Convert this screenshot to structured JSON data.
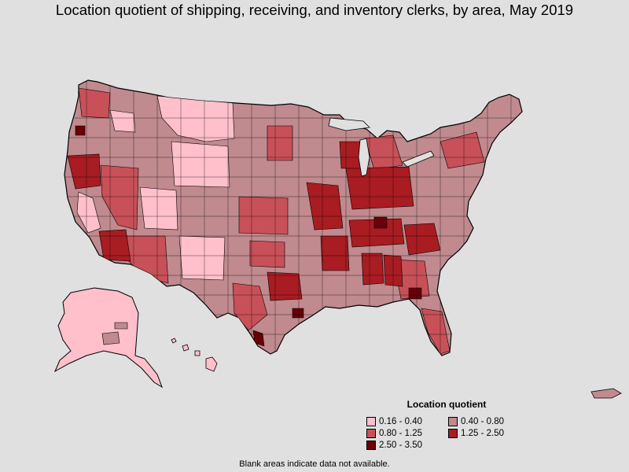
{
  "title": "Location quotient of shipping, receiving, and inventory clerks, by area, May 2019",
  "legend": {
    "title": "Location quotient",
    "items": [
      {
        "label": "0.16 - 0.40",
        "color": "#ffc0cb"
      },
      {
        "label": "0.40 - 0.80",
        "color": "#c08a8e"
      },
      {
        "label": "0.80 - 1.25",
        "color": "#c85058"
      },
      {
        "label": "1.25 - 2.50",
        "color": "#a81c22"
      },
      {
        "label": "2.50 - 3.50",
        "color": "#6a0008"
      }
    ]
  },
  "footnote": "Blank areas indicate data not available.",
  "colors": {
    "background": "#e0e0e0",
    "border": "#000000"
  }
}
